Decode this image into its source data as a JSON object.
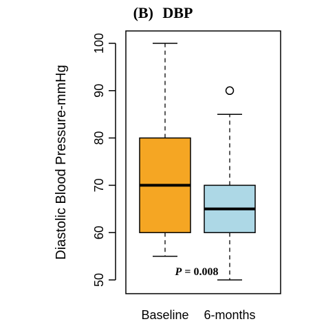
{
  "chart_data": {
    "type": "box",
    "panel_label": "(B)",
    "title": "DBP",
    "ylabel": "Diastolic Blood Pressure-mmHg",
    "ylim": [
      50,
      100
    ],
    "yticks": [
      50,
      60,
      70,
      80,
      90,
      100
    ],
    "ytick_labels": [
      "50",
      "60",
      "70",
      "80",
      "90",
      "100"
    ],
    "annotation": {
      "prefix": "P",
      "text": " = 0.008"
    },
    "categories": [
      "Baseline",
      "6-months"
    ],
    "boxes": [
      {
        "name": "Baseline",
        "whisker_low": 55,
        "q1": 60,
        "median": 70,
        "q3": 80,
        "whisker_high": 100,
        "outliers": [],
        "color": "#F5A623"
      },
      {
        "name": "6-months",
        "whisker_low": 50,
        "q1": 60,
        "median": 65,
        "q3": 70,
        "whisker_high": 85,
        "outliers": [
          90
        ],
        "color": "#ADD8E6"
      }
    ],
    "grid": false
  }
}
